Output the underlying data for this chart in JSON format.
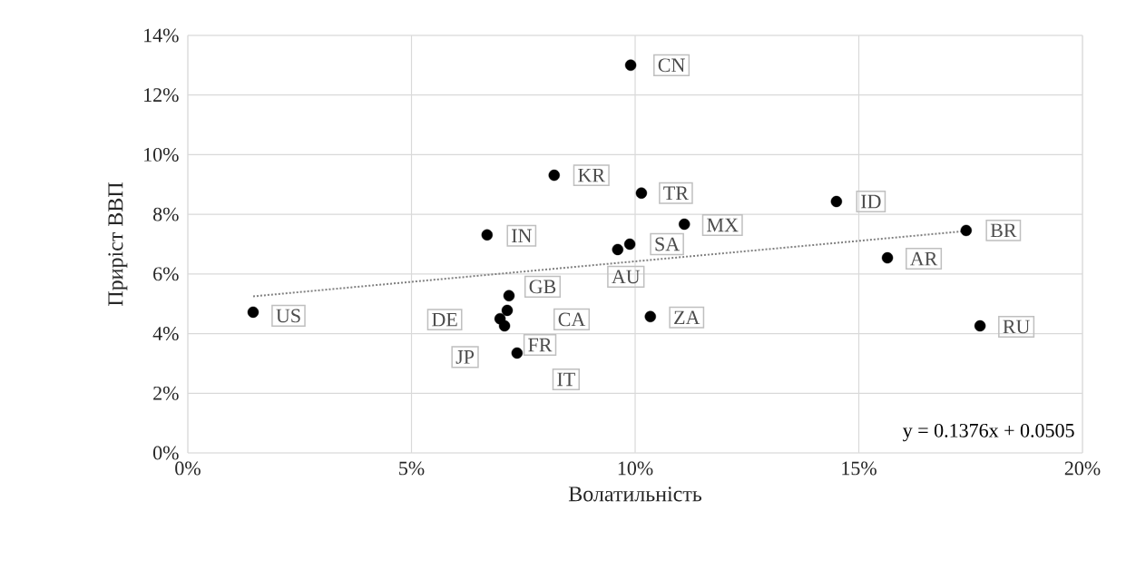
{
  "chart_data": {
    "type": "scatter",
    "xlabel": "Волатильність",
    "ylabel": "Приріст ВВП",
    "xlim": [
      0,
      20
    ],
    "ylim": [
      0,
      14
    ],
    "xticks": [
      {
        "value": 0,
        "label": "0%"
      },
      {
        "value": 5,
        "label": "5%"
      },
      {
        "value": 10,
        "label": "10%"
      },
      {
        "value": 15,
        "label": "15%"
      },
      {
        "value": 20,
        "label": "20%"
      }
    ],
    "yticks": [
      {
        "value": 0,
        "label": "0%"
      },
      {
        "value": 2,
        "label": "2%"
      },
      {
        "value": 4,
        "label": "4%"
      },
      {
        "value": 6,
        "label": "6%"
      },
      {
        "value": 8,
        "label": "8%"
      },
      {
        "value": 10,
        "label": "10%"
      },
      {
        "value": 12,
        "label": "12%"
      },
      {
        "value": 14,
        "label": "14%"
      }
    ],
    "grid": true,
    "marker": "circle",
    "series": [
      {
        "color": "#000000",
        "x": [
          9.9,
          8.19,
          10.14,
          14.5,
          11.1,
          17.4,
          6.69,
          9.88,
          9.61,
          15.64,
          7.18,
          7.14,
          6.98,
          7.08,
          null,
          7.36,
          10.34,
          17.71,
          1.46
        ],
        "values": [
          13.0,
          9.31,
          8.71,
          8.43,
          7.67,
          7.46,
          7.31,
          7.0,
          6.82,
          6.54,
          5.27,
          4.78,
          4.5,
          4.26,
          null,
          3.35,
          4.57,
          4.26,
          4.72
        ]
      },
      {
        "type": "line",
        "color": "#808080",
        "line_style": "dotted",
        "marker": "none",
        "x": [
          1.46,
          17.4
        ],
        "values": [
          5.25,
          7.44
        ]
      }
    ],
    "annotations": [
      {
        "text": "CN",
        "x": 9.9,
        "y": 13.0
      },
      {
        "text": "KR",
        "x": 8.19,
        "y": 9.31
      },
      {
        "text": "TR",
        "x": 10.14,
        "y": 8.71
      },
      {
        "text": "ID",
        "x": 14.5,
        "y": 8.43
      },
      {
        "text": "MX",
        "x": 11.1,
        "y": 7.67
      },
      {
        "text": "BR",
        "x": 17.4,
        "y": 7.46
      },
      {
        "text": "IN",
        "x": 6.69,
        "y": 7.31
      },
      {
        "text": "SA",
        "x": 9.88,
        "y": 7.0
      },
      {
        "text": "AU",
        "x": 9.61,
        "y": 6.82
      },
      {
        "text": "AR",
        "x": 15.64,
        "y": 6.54
      },
      {
        "text": "GB",
        "x": 7.18,
        "y": 5.27
      },
      {
        "text": "CA",
        "x": 7.14,
        "y": 4.78
      },
      {
        "text": "DE",
        "x": 6.98,
        "y": 4.5
      },
      {
        "text": "FR",
        "x": 7.08,
        "y": 4.26
      },
      {
        "text": "JP",
        "x": 7.05,
        "y": 4.4
      },
      {
        "text": "IT",
        "x": 7.36,
        "y": 3.35
      },
      {
        "text": "ZA",
        "x": 10.34,
        "y": 4.57
      },
      {
        "text": "RU",
        "x": 17.71,
        "y": 4.26
      },
      {
        "text": "US",
        "x": 1.46,
        "y": 4.72
      },
      "y = 0.1376x + 0.0505"
    ]
  }
}
